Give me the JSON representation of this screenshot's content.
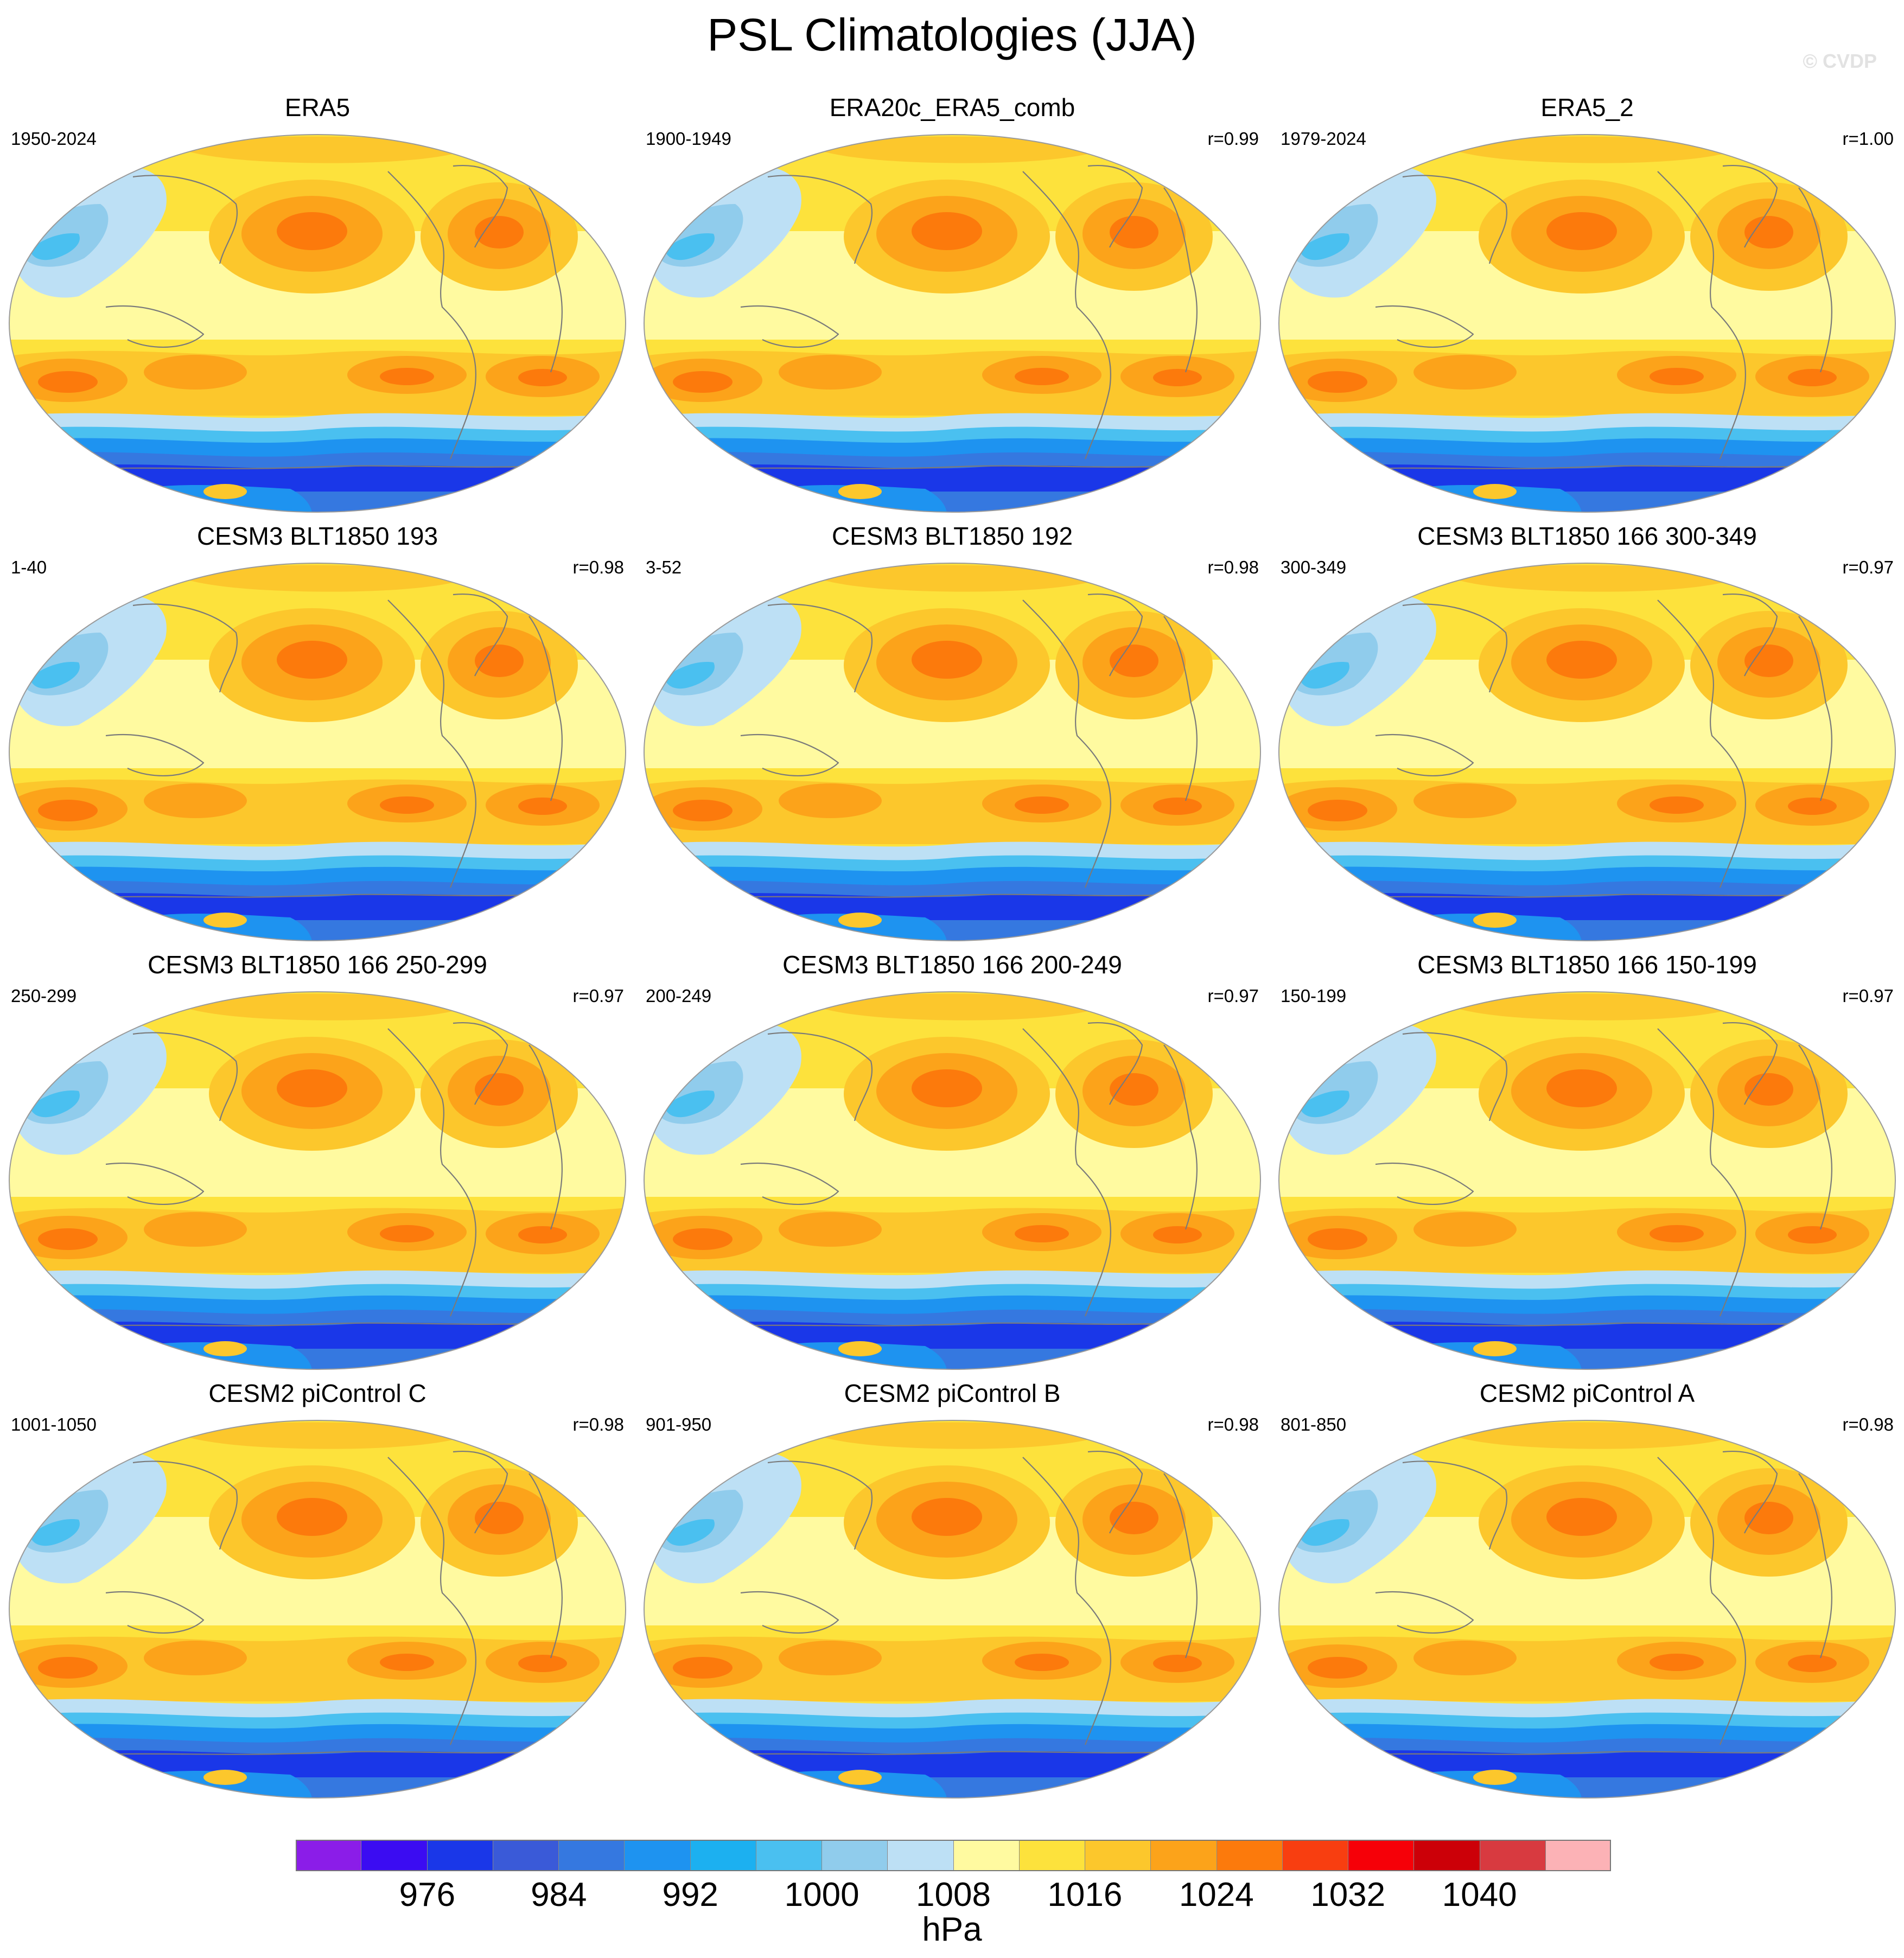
{
  "title": "PSL Climatologies (JJA)",
  "watermark": "© CVDP",
  "panels": [
    {
      "title": "ERA5",
      "years": "1950-2024",
      "r": ""
    },
    {
      "title": "ERA20c_ERA5_comb",
      "years": "1900-1949",
      "r": "r=0.99"
    },
    {
      "title": "ERA5_2",
      "years": "1979-2024",
      "r": "r=1.00"
    },
    {
      "title": "CESM3 BLT1850 193",
      "years": "1-40",
      "r": "r=0.98"
    },
    {
      "title": "CESM3 BLT1850 192",
      "years": "3-52",
      "r": "r=0.98"
    },
    {
      "title": "CESM3 BLT1850 166 300-349",
      "years": "300-349",
      "r": "r=0.97"
    },
    {
      "title": "CESM3 BLT1850 166 250-299",
      "years": "250-299",
      "r": "r=0.97"
    },
    {
      "title": "CESM3 BLT1850 166 200-249",
      "years": "200-249",
      "r": "r=0.97"
    },
    {
      "title": "CESM3 BLT1850 166 150-199",
      "years": "150-199",
      "r": "r=0.97"
    },
    {
      "title": "CESM2 piControl C",
      "years": "1001-1050",
      "r": "r=0.98"
    },
    {
      "title": "CESM2 piControl B",
      "years": "901-950",
      "r": "r=0.98"
    },
    {
      "title": "CESM2 piControl A",
      "years": "801-850",
      "r": "r=0.98"
    }
  ],
  "colorbar": {
    "colors": [
      "#8b1de8",
      "#3b0cf2",
      "#1a37e8",
      "#3a5ad8",
      "#3578e0",
      "#1e93f0",
      "#1cb0f0",
      "#4ac0f0",
      "#90ccec",
      "#bde0f5",
      "#fffaa0",
      "#fde23c",
      "#fcc72c",
      "#fca31a",
      "#fc7a0c",
      "#f83e10",
      "#f60008",
      "#cc0008",
      "#d83a40",
      "#fcb2b6"
    ],
    "labels": [
      "976",
      "984",
      "992",
      "1000",
      "1008",
      "1016",
      "1024",
      "1032",
      "1040"
    ],
    "units": "hPa"
  },
  "map_colors": {
    "antarctic_deep": "#3a5ad8",
    "southern_ocean_dark": "#1a37e8",
    "southern_ocean_mid": "#3578e0",
    "southern_ocean_light": "#1e93f0",
    "southern_ocean_pale": "#4ac0f0",
    "low_pale": "#bde0f5",
    "low_mid": "#90ccec",
    "background_pale": "#fffaa0",
    "yellow": "#fde23c",
    "light_orange": "#fcc72c",
    "orange": "#fca31a",
    "dark_orange": "#fc7a0c",
    "red_core": "#f83e10",
    "coast": "#7a7a7a"
  }
}
